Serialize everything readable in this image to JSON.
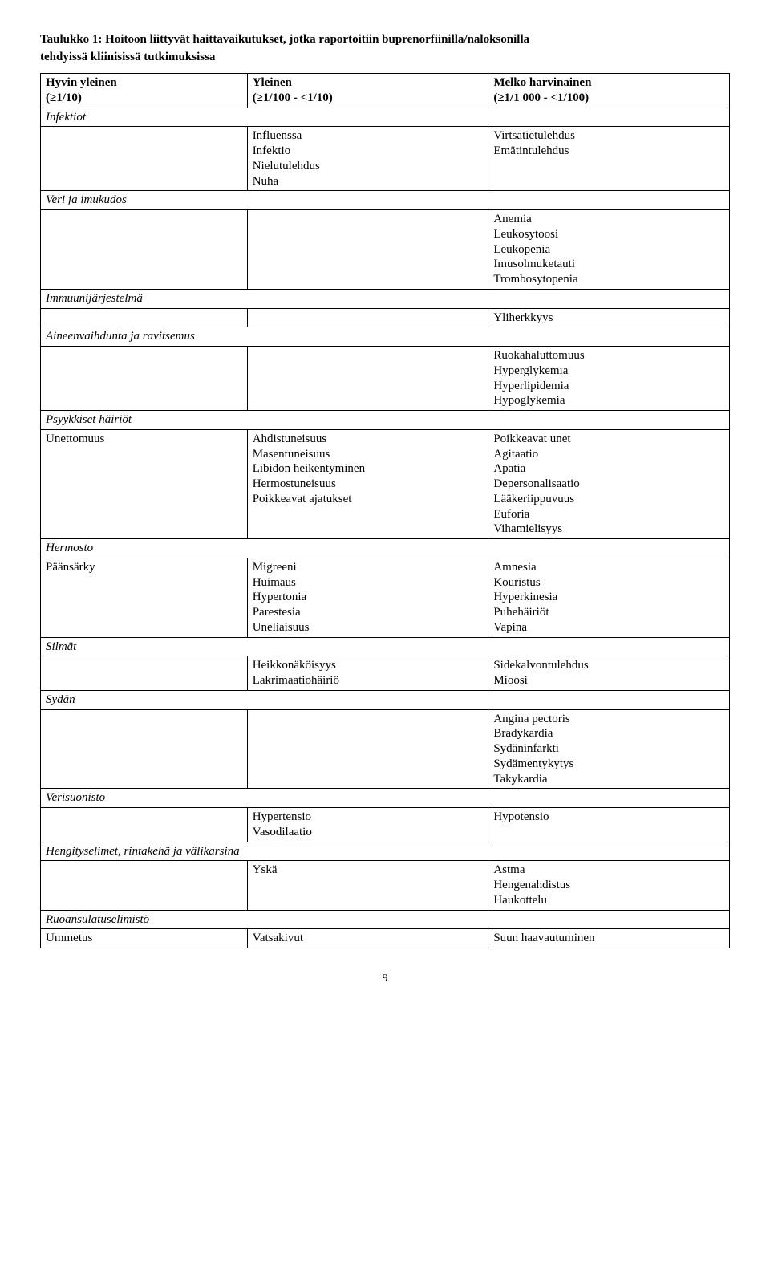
{
  "title_line1": "Taulukko 1: Hoitoon liittyvät haittavaikutukset, jotka raportoitiin buprenorfiinilla/naloksonilla",
  "title_line2": "tehdyissä kliinisissä tutkimuksissa",
  "header": {
    "col1_a": "Hyvin yleinen",
    "col1_b": "(≥1/10)",
    "col2_a": "Yleinen",
    "col2_b": "(≥1/100 - <1/10)",
    "col3_a": "Melko harvinainen",
    "col3_b": "(≥1/1 000 - <1/100)"
  },
  "sections": {
    "infektiot": {
      "label": "Infektiot",
      "row": {
        "c2": "Influenssa\nInfektio\nNielutulehdus\nNuha",
        "c3": "Virtsatietulehdus\nEmätintulehdus"
      }
    },
    "veri": {
      "label": "Veri ja imukudos",
      "row": {
        "c3": "Anemia\nLeukosytoosi\nLeukopenia\nImusolmuketauti\nTrombosytopenia"
      }
    },
    "immuuni": {
      "label": "Immuunijärjestelmä",
      "row": {
        "c3": "Yliherkkyys"
      }
    },
    "aineenvaihdunta": {
      "label": "Aineenvaihdunta ja ravitsemus",
      "row": {
        "c3": "Ruokahaluttomuus\nHyperglykemia\nHyperlipidemia\nHypoglykemia"
      }
    },
    "psyykkiset": {
      "label": "Psyykkiset häiriöt",
      "row": {
        "c1": "Unettomuus",
        "c2": "Ahdistuneisuus\nMasentuneisuus\nLibidon heikentyminen\nHermostuneisuus\nPoikkeavat ajatukset",
        "c3": "Poikkeavat unet\nAgitaatio\nApatia\nDepersonalisaatio\nLääkeriippuvuus\nEuforia\nVihamielisyys"
      }
    },
    "hermosto": {
      "label": "Hermosto",
      "row": {
        "c1": "Päänsärky",
        "c2": "Migreeni\nHuimaus\nHypertonia\nParestesia\nUneliaisuus",
        "c3": "Amnesia\nKouristus\nHyperkinesia\nPuhehäiriöt\nVapina"
      }
    },
    "silmat": {
      "label": "Silmät",
      "row": {
        "c2": "Heikkonäköisyys\nLakrimaatiohäiriö",
        "c3": "Sidekalvontulehdus\nMioosi"
      }
    },
    "sydan": {
      "label": "Sydän",
      "row": {
        "c3": "Angina pectoris\nBradykardia\nSydäninfarkti\nSydämentykytys\nTakykardia"
      }
    },
    "verisuonisto": {
      "label": "Verisuonisto",
      "row": {
        "c2": "Hypertensio\nVasodilaatio",
        "c3": "Hypotensio"
      }
    },
    "hengitys": {
      "label": "Hengityselimet, rintakehä ja välikarsina",
      "row": {
        "c2": "Yskä",
        "c3": "Astma\nHengenahdistus\nHaukottelu"
      }
    },
    "ruoansulatus": {
      "label": "Ruoansulatuselimistö",
      "row": {
        "c1": "Ummetus",
        "c2": "Vatsakivut",
        "c3": "Suun haavautuminen"
      }
    }
  },
  "page_number": "9"
}
